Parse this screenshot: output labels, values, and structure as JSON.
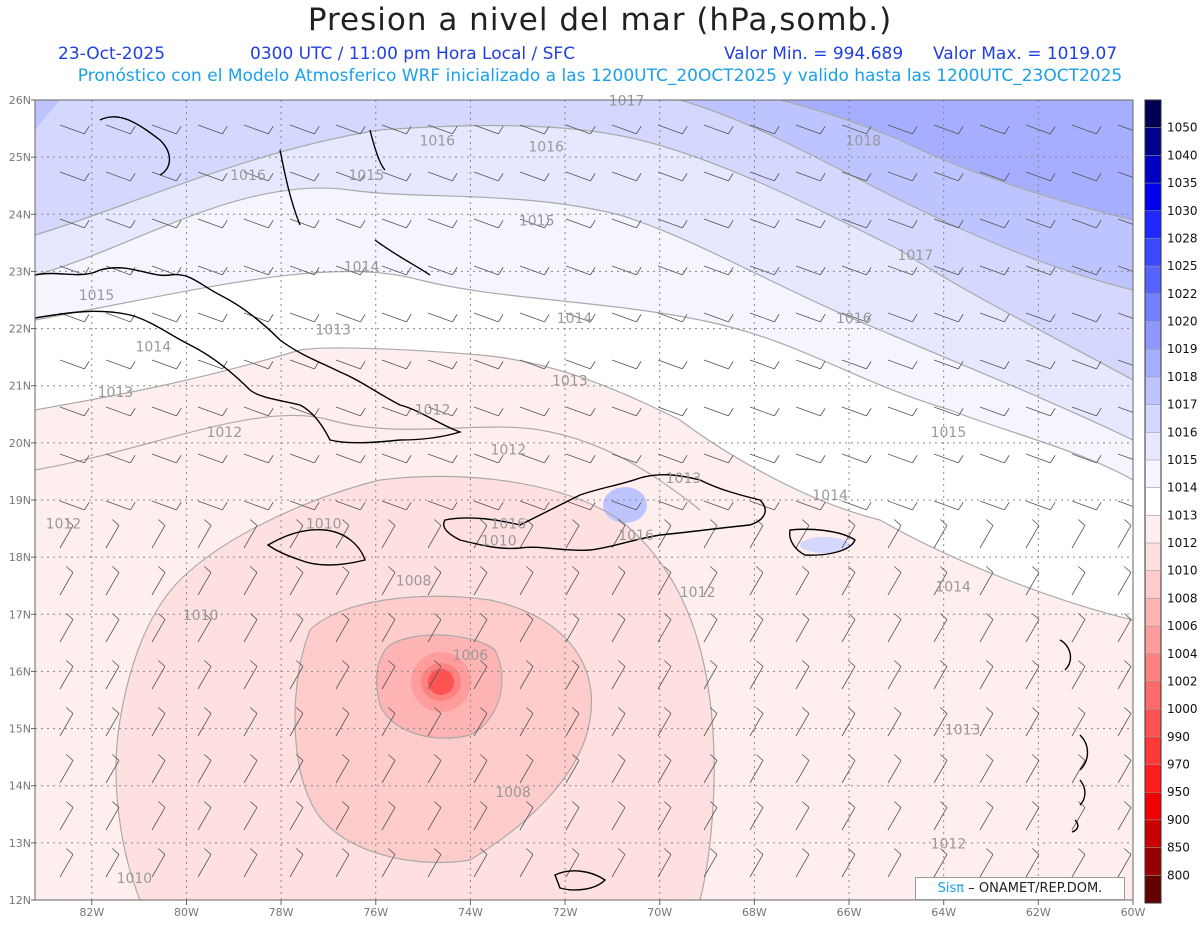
{
  "header": {
    "title": "Presion a nivel del mar (hPa,somb.)",
    "date": "23-Oct-2025",
    "time": "0300 UTC / 11:00 pm Hora Local / SFC",
    "min_label": "Valor Min. = 994.689",
    "max_label": "Valor Max. = 1019.07",
    "model_line": "Pronóstico con el Modelo Atmosferico WRF inicializado a las 1200UTC_20OCT2025 y valido hasta las  1200UTC_23OCT2025"
  },
  "map": {
    "lat_labels": [
      "26N",
      "25N",
      "24N",
      "23N",
      "22N",
      "21N",
      "20N",
      "19N",
      "18N",
      "17N",
      "16N",
      "15N",
      "14N",
      "13N",
      "12N"
    ],
    "lon_labels": [
      "82W",
      "80W",
      "78W",
      "76W",
      "74W",
      "72W",
      "70W",
      "68W",
      "66W",
      "64W",
      "62W",
      "60W"
    ],
    "lat_range": [
      12,
      26
    ],
    "lon_range": [
      -83.2,
      -60
    ],
    "isobar_labels": [
      {
        "text": "1017",
        "lon": -70.7,
        "lat": 25.9
      },
      {
        "text": "1018",
        "lon": -65.7,
        "lat": 25.2
      },
      {
        "text": "1016",
        "lon": -74.7,
        "lat": 25.2
      },
      {
        "text": "1016",
        "lon": -72.4,
        "lat": 25.1
      },
      {
        "text": "1016",
        "lon": -78.7,
        "lat": 24.6
      },
      {
        "text": "1015",
        "lon": -76.2,
        "lat": 24.6
      },
      {
        "text": "1015",
        "lon": -72.6,
        "lat": 23.8
      },
      {
        "text": "1017",
        "lon": -64.6,
        "lat": 23.2
      },
      {
        "text": "1014",
        "lon": -76.3,
        "lat": 23.0
      },
      {
        "text": "1015",
        "lon": -81.9,
        "lat": 22.5
      },
      {
        "text": "1014",
        "lon": -71.8,
        "lat": 22.1
      },
      {
        "text": "1016",
        "lon": -65.9,
        "lat": 22.1
      },
      {
        "text": "1013",
        "lon": -76.9,
        "lat": 21.9
      },
      {
        "text": "1014",
        "lon": -80.7,
        "lat": 21.6
      },
      {
        "text": "1013",
        "lon": -71.9,
        "lat": 21.0
      },
      {
        "text": "1013",
        "lon": -81.5,
        "lat": 20.8
      },
      {
        "text": "1012",
        "lon": -74.8,
        "lat": 20.5
      },
      {
        "text": "1012",
        "lon": -79.2,
        "lat": 20.1
      },
      {
        "text": "1015",
        "lon": -63.9,
        "lat": 20.1
      },
      {
        "text": "1012",
        "lon": -73.2,
        "lat": 19.8
      },
      {
        "text": "1013",
        "lon": -69.5,
        "lat": 19.3
      },
      {
        "text": "1014",
        "lon": -66.4,
        "lat": 19.0
      },
      {
        "text": "1012",
        "lon": -82.6,
        "lat": 18.5
      },
      {
        "text": "1010",
        "lon": -77.1,
        "lat": 18.5
      },
      {
        "text": "1016",
        "lon": -73.2,
        "lat": 18.5
      },
      {
        "text": "1016",
        "lon": -70.5,
        "lat": 18.3
      },
      {
        "text": "1010",
        "lon": -73.4,
        "lat": 18.2
      },
      {
        "text": "1008",
        "lon": -75.2,
        "lat": 17.5
      },
      {
        "text": "1012",
        "lon": -69.2,
        "lat": 17.3
      },
      {
        "text": "1014",
        "lon": -63.8,
        "lat": 17.4
      },
      {
        "text": "1010",
        "lon": -79.7,
        "lat": 16.9
      },
      {
        "text": "1006",
        "lon": -74.0,
        "lat": 16.2
      },
      {
        "text": "1013",
        "lon": -63.6,
        "lat": 14.9
      },
      {
        "text": "1008",
        "lon": -73.1,
        "lat": 13.8
      },
      {
        "text": "1012",
        "lon": -63.9,
        "lat": 12.9
      },
      {
        "text": "1010",
        "lon": -81.1,
        "lat": 12.3
      }
    ]
  },
  "colorbar": {
    "levels": [
      "1050",
      "1040",
      "1035",
      "1030",
      "1028",
      "1025",
      "1022",
      "1020",
      "1019",
      "1018",
      "1017",
      "1016",
      "1015",
      "1014",
      "1013",
      "1012",
      "1010",
      "1008",
      "1006",
      "1004",
      "1002",
      "1000",
      "990",
      "970",
      "950",
      "900",
      "850",
      "800"
    ],
    "colors": [
      "#000050",
      "#00008c",
      "#0000c0",
      "#0000ee",
      "#1e28ff",
      "#3a48ff",
      "#5664ff",
      "#7480ff",
      "#8e98ff",
      "#a6aeff",
      "#bec4ff",
      "#d4d8ff",
      "#e6e8ff",
      "#f4f5ff",
      "#ffffff",
      "#ffeeee",
      "#ffe0e0",
      "#ffcccc",
      "#ffb4b4",
      "#ff9c9c",
      "#ff8282",
      "#ff6a6a",
      "#ff5252",
      "#ff3838",
      "#ff1c1c",
      "#f00000",
      "#c80000",
      "#960000",
      "#640000"
    ]
  },
  "credit": {
    "brand": "Sisπ",
    "org": "– ONAMET/REP.DOM."
  }
}
